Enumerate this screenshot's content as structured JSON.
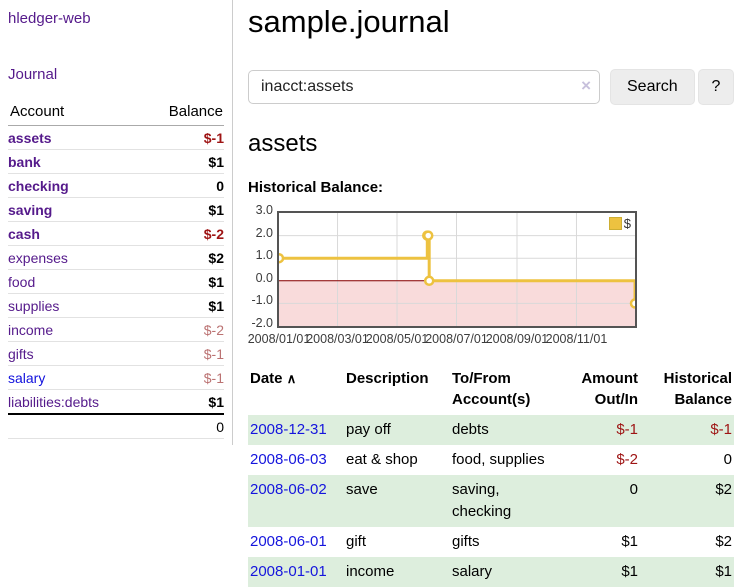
{
  "app": {
    "title": "hledger-web"
  },
  "sidebar": {
    "journal_label": "Journal",
    "accounts_table": {
      "headers": {
        "account": "Account",
        "balance": "Balance"
      },
      "rows": [
        {
          "account": "assets",
          "balance": "$-1",
          "depth": 1,
          "matched": true,
          "balance_style": "neg-strong"
        },
        {
          "account": "bank",
          "balance": "$1",
          "depth": 2,
          "matched": true,
          "balance_style": "pos"
        },
        {
          "account": "checking",
          "balance": "0",
          "depth": 3,
          "matched": true,
          "balance_style": "pos"
        },
        {
          "account": "saving",
          "balance": "$1",
          "depth": 3,
          "matched": true,
          "balance_style": "pos"
        },
        {
          "account": "cash",
          "balance": "$-2",
          "depth": 2,
          "matched": true,
          "balance_style": "neg-strong"
        },
        {
          "account": "expenses",
          "balance": "$2",
          "depth": 1,
          "matched": false,
          "balance_style": "pos"
        },
        {
          "account": "food",
          "balance": "$1",
          "depth": 2,
          "matched": false,
          "balance_style": "pos"
        },
        {
          "account": "supplies",
          "balance": "$1",
          "depth": 2,
          "matched": false,
          "balance_style": "pos"
        },
        {
          "account": "income",
          "balance": "$-2",
          "depth": 1,
          "matched": false,
          "balance_style": "neg-faded"
        },
        {
          "account": "gifts",
          "balance": "$-1",
          "depth": 2,
          "matched": false,
          "balance_style": "neg-faded"
        },
        {
          "account": "salary",
          "balance": "$-1",
          "depth": 2,
          "matched": false,
          "balance_style": "neg-faded",
          "unvisited": true
        },
        {
          "account": "liabilities:debts",
          "balance": "$1",
          "depth": 1,
          "matched": false,
          "balance_style": "pos"
        }
      ],
      "total": "0"
    }
  },
  "header": {
    "title": "sample.journal"
  },
  "search": {
    "value": "inacct:assets",
    "clear_icon": "×",
    "button_label": "Search",
    "help_label": "?"
  },
  "account_page": {
    "title": "assets",
    "chart_label": "Historical Balance:"
  },
  "chart_data": {
    "type": "line",
    "step": true,
    "title": "Historical Balance:",
    "series": [
      {
        "name": "$",
        "color": "#edc240",
        "points": [
          [
            "2008-01-01",
            1
          ],
          [
            "2008-06-01",
            2
          ],
          [
            "2008-06-02",
            2
          ],
          [
            "2008-06-03",
            0
          ],
          [
            "2008-12-31",
            -1
          ]
        ]
      }
    ],
    "xmin": "2008-01-01",
    "xmax": "2008-12-31",
    "ylim": [
      -2,
      3
    ],
    "yticks": [
      "3.0",
      "2.0",
      "1.0",
      "0.0",
      "-1.0",
      "-2.0"
    ],
    "xticks": [
      "2008/01/01",
      "2008/03/01",
      "2008/05/01",
      "2008/07/01",
      "2008/09/01",
      "2008/11/01"
    ],
    "legend": {
      "label": "$",
      "position": "top-right"
    },
    "grid": true,
    "negative_region_color": "#f9dbdb",
    "zero_line_color": "#8b0000",
    "grid_color": "#d9d9d9",
    "border_color": "#545454"
  },
  "transactions_table": {
    "sort_arrow": "∧",
    "headers": {
      "date": "Date",
      "description": "Description",
      "accounts": "To/From Account(s)",
      "amount": "Amount Out/In",
      "balance": "Historical Balance"
    },
    "rows": [
      {
        "date": "2008-12-31",
        "description": "pay off",
        "accounts": "debts",
        "amount": "$-1",
        "balance": "$-1",
        "amount_negative": true,
        "balance_negative": true
      },
      {
        "date": "2008-06-03",
        "description": "eat & shop",
        "accounts": "food, supplies",
        "amount": "$-2",
        "balance": "0",
        "amount_negative": true,
        "balance_negative": false
      },
      {
        "date": "2008-06-02",
        "description": "save",
        "accounts": "saving, checking",
        "amount": "0",
        "balance": "$2",
        "amount_negative": false,
        "balance_negative": false
      },
      {
        "date": "2008-06-01",
        "description": "gift",
        "accounts": "gifts",
        "amount": "$1",
        "balance": "$2",
        "amount_negative": false,
        "balance_negative": false
      },
      {
        "date": "2008-01-01",
        "description": "income",
        "accounts": "salary",
        "amount": "$1",
        "balance": "$1",
        "amount_negative": false,
        "balance_negative": false
      }
    ]
  },
  "colors": {
    "visited_link_purple": "#551a8b",
    "unvisited_link_blue": "#1111dd",
    "negative_strong_red": "#9e1414",
    "negative_faded_red": "#bb7272",
    "series_gold": "#edc240",
    "row_green": "#ddeedd",
    "negative_region_pink": "#f9dbdb",
    "zero_line_dark_red": "#8b0000"
  }
}
